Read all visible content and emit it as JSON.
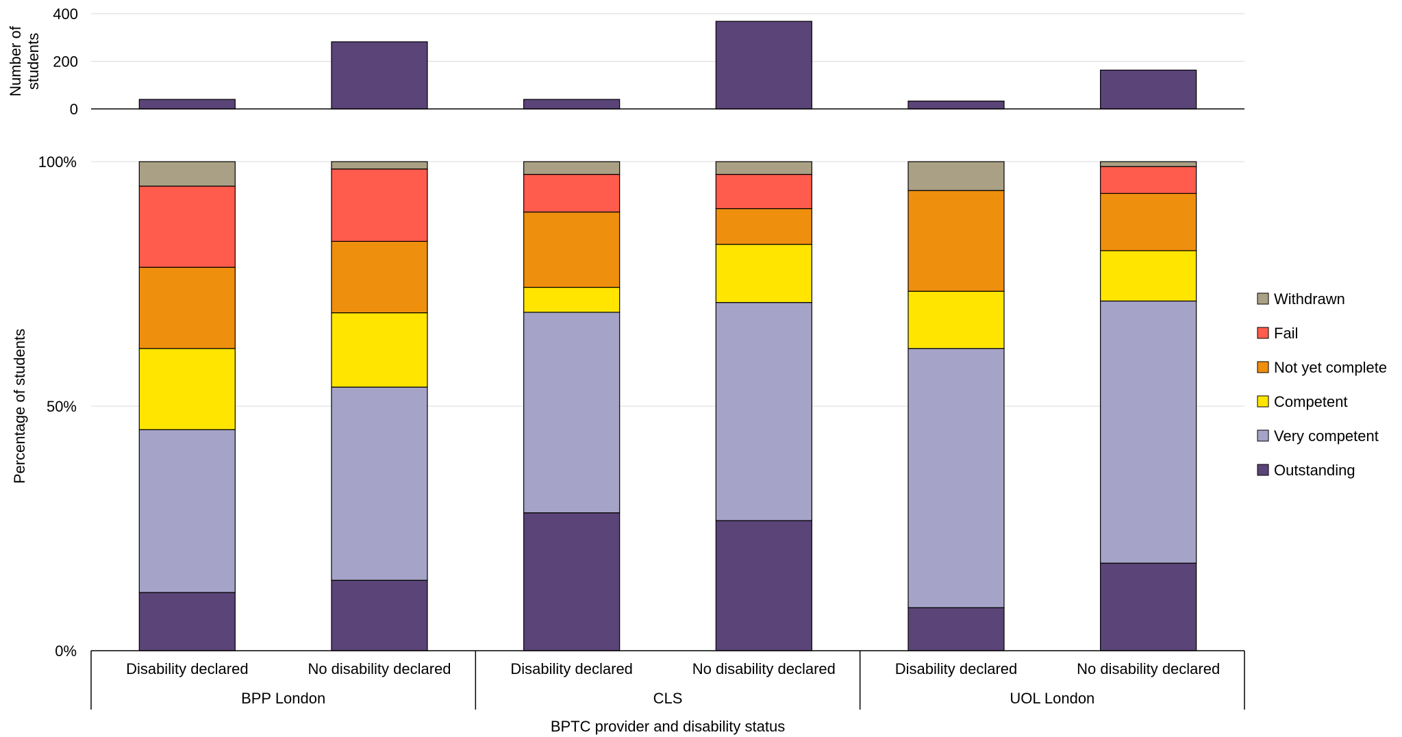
{
  "chart_data": [
    {
      "type": "bar",
      "ylabel": "Number of students",
      "ylabel_lines": [
        "Number of",
        "students"
      ],
      "ylim": [
        0,
        400
      ],
      "yticks": [
        0,
        200,
        400
      ],
      "ytick_labels": [
        "0",
        "200",
        "400"
      ],
      "grid": true,
      "categories": [
        "Disability declared",
        "No disability declared",
        "Disability declared",
        "No disability declared",
        "Disability declared",
        "No disability declared"
      ],
      "series": [
        {
          "color": "#5b4478",
          "values": [
            40,
            282,
            40,
            368,
            33,
            163
          ]
        }
      ]
    },
    {
      "type": "bar",
      "stacked": true,
      "ylabel": "Percentage of students",
      "xlabel": "BPTC provider and disability status",
      "ylim": [
        0,
        100
      ],
      "yticks": [
        0,
        50,
        100
      ],
      "ytick_labels": [
        "0%",
        "50%",
        "100%"
      ],
      "grid": true,
      "categories": [
        "Disability declared",
        "No disability declared",
        "Disability declared",
        "No disability declared",
        "Disability declared",
        "No disability declared"
      ],
      "groups": [
        {
          "label": "BPP London",
          "categories": [
            0,
            1
          ]
        },
        {
          "label": "CLS",
          "categories": [
            2,
            3
          ]
        },
        {
          "label": "UOL London",
          "categories": [
            4,
            5
          ]
        }
      ],
      "legend_position": "right",
      "series": [
        {
          "name": "Outstanding",
          "color": "#5b4478",
          "values": [
            11.9,
            14.4,
            28.2,
            26.6,
            8.8,
            17.9
          ]
        },
        {
          "name": "Very competent",
          "color": "#a5a3c7",
          "values": [
            33.3,
            39.5,
            41.0,
            44.6,
            53.0,
            53.6
          ]
        },
        {
          "name": "Competent",
          "color": "#ffe500",
          "values": [
            16.6,
            15.2,
            5.1,
            11.9,
            11.7,
            10.3
          ]
        },
        {
          "name": "Not yet complete",
          "color": "#ef8f0e",
          "values": [
            16.6,
            14.6,
            15.4,
            7.3,
            20.6,
            11.7
          ]
        },
        {
          "name": "Fail",
          "color": "#ff5c4d",
          "values": [
            16.6,
            14.8,
            7.7,
            7.0,
            0.0,
            5.5
          ]
        },
        {
          "name": "Withdrawn",
          "color": "#aaa085",
          "values": [
            5.0,
            1.5,
            2.6,
            2.6,
            5.9,
            1.0
          ]
        }
      ]
    }
  ]
}
